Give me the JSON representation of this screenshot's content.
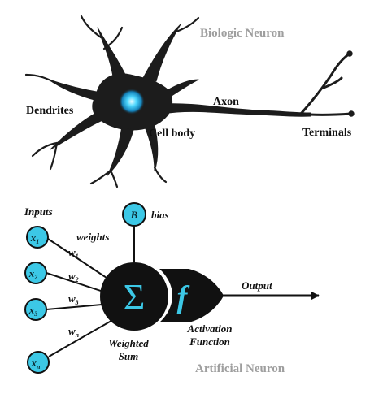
{
  "biologic": {
    "title": "Biologic Neuron",
    "labels": {
      "dendrites": "Dendrites",
      "cell_body": "Cell body",
      "axon": "Axon",
      "terminals": "Terminals"
    },
    "colors": {
      "membrane": "#1c1c1c",
      "nucleus": "#4fd8ff"
    }
  },
  "artificial": {
    "title": "Artificial Neuron",
    "inputs_label": "Inputs",
    "weights_label": "weights",
    "bias": {
      "symbol": "B",
      "label": "bias"
    },
    "input_nodes": [
      {
        "base": "x",
        "sub": "1"
      },
      {
        "base": "x",
        "sub": "2"
      },
      {
        "base": "x",
        "sub": "3"
      },
      {
        "base": "x",
        "sub": "n"
      }
    ],
    "weights": [
      {
        "base": "w",
        "sub": "1"
      },
      {
        "base": "w",
        "sub": "2"
      },
      {
        "base": "w",
        "sub": "3"
      },
      {
        "base": "w",
        "sub": "n"
      }
    ],
    "sum_symbol": "Σ",
    "activation_symbol": "f",
    "weighted_sum_label": [
      "Weighted",
      "Sum"
    ],
    "activation_label": [
      "Activation",
      "Function"
    ],
    "output_label": "Output",
    "colors": {
      "node_fill": "#3cc8e6",
      "symbol": "#3cc8e6",
      "body": "#111111"
    }
  }
}
